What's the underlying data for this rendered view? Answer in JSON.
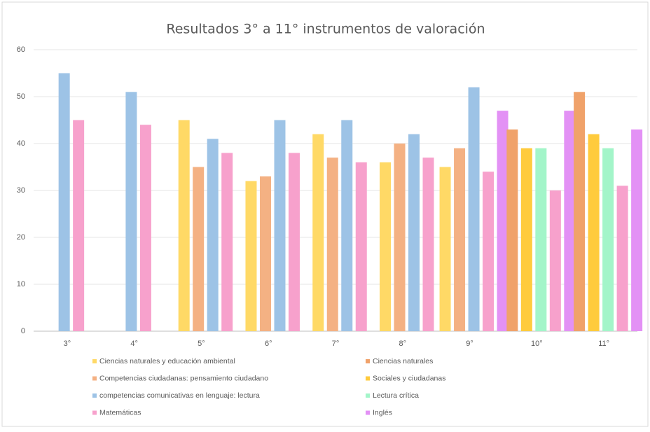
{
  "chart_data": {
    "type": "bar",
    "title": "Resultados 3° a 11° instrumentos de valoración",
    "categories": [
      "3°",
      "4°",
      "5°",
      "6°",
      "7°",
      "8°",
      "9°",
      "10°",
      "11°"
    ],
    "series": [
      {
        "name": "Ciencias naturales y educación ambiental",
        "color": "#ffd966",
        "values": [
          null,
          null,
          45,
          32,
          42,
          36,
          35,
          null,
          null
        ]
      },
      {
        "name": "Ciencias naturales",
        "color": "#f0a26a",
        "values": [
          null,
          null,
          null,
          null,
          null,
          null,
          null,
          43,
          51
        ]
      },
      {
        "name": "Competencias ciudadanas: pensamiento ciudadano",
        "color": "#f4b183",
        "values": [
          null,
          null,
          35,
          33,
          37,
          40,
          39,
          null,
          null
        ]
      },
      {
        "name": "Sociales y ciudadanas",
        "color": "#ffcb3d",
        "values": [
          null,
          null,
          null,
          null,
          null,
          null,
          null,
          39,
          42
        ]
      },
      {
        "name": "competencias comunicativas en lenguaje: lectura",
        "color": "#9dc3e6",
        "values": [
          55,
          51,
          41,
          45,
          45,
          42,
          52,
          null,
          null
        ]
      },
      {
        "name": "Lectura crítica",
        "color": "#a3f5c9",
        "values": [
          null,
          null,
          null,
          null,
          null,
          null,
          null,
          39,
          39
        ]
      },
      {
        "name": "Matemáticas",
        "color": "#f7a1cc",
        "values": [
          45,
          44,
          38,
          38,
          36,
          37,
          34,
          30,
          31
        ]
      },
      {
        "name": "Inglés",
        "color": "#e391f5",
        "values": [
          null,
          null,
          null,
          null,
          null,
          null,
          47,
          47,
          43
        ]
      }
    ],
    "ylim": [
      0,
      60
    ],
    "yticks": [
      0,
      10,
      20,
      30,
      40,
      50,
      60
    ],
    "grid": true
  }
}
